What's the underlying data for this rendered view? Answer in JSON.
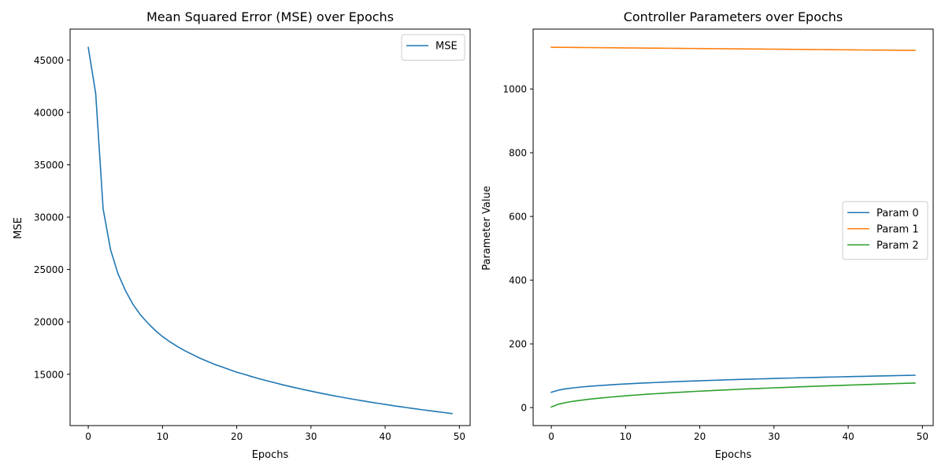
{
  "chart_data": [
    {
      "type": "line",
      "title": "Mean Squared Error (MSE) over Epochs",
      "xlabel": "Epochs",
      "ylabel": "MSE",
      "xlim": [
        -2.45,
        51.45
      ],
      "ylim": [
        10100,
        47950
      ],
      "xticks": [
        0,
        10,
        20,
        30,
        40,
        50
      ],
      "yticks": [
        15000,
        20000,
        25000,
        30000,
        35000,
        40000,
        45000
      ],
      "grid": false,
      "legend_position": "top-right",
      "series": [
        {
          "name": "MSE",
          "color": "#1f77b4",
          "x": [
            0,
            1,
            2,
            3,
            4,
            5,
            6,
            7,
            8,
            9,
            10,
            11,
            12,
            13,
            14,
            15,
            16,
            17,
            18,
            19,
            20,
            21,
            22,
            23,
            24,
            25,
            26,
            27,
            28,
            29,
            30,
            31,
            32,
            33,
            34,
            35,
            36,
            37,
            38,
            39,
            40,
            41,
            42,
            43,
            44,
            45,
            46,
            47,
            48,
            49
          ],
          "values": [
            46200,
            41800,
            30800,
            26900,
            24600,
            23000,
            21700,
            20700,
            19900,
            19200,
            18600,
            18100,
            17650,
            17250,
            16900,
            16550,
            16250,
            15950,
            15700,
            15450,
            15200,
            15000,
            14780,
            14580,
            14390,
            14210,
            14030,
            13860,
            13700,
            13540,
            13390,
            13240,
            13100,
            12960,
            12830,
            12700,
            12580,
            12460,
            12340,
            12230,
            12120,
            12010,
            11910,
            11810,
            11710,
            11610,
            11520,
            11430,
            11340,
            11250
          ]
        }
      ]
    },
    {
      "type": "line",
      "title": "Controller Parameters over Epochs",
      "xlabel": "Epochs",
      "ylabel": "Parameter Value",
      "xlim": [
        -2.45,
        51.45
      ],
      "ylim": [
        -56.5,
        1188
      ],
      "xticks": [
        0,
        10,
        20,
        30,
        40,
        50
      ],
      "yticks": [
        0,
        200,
        400,
        600,
        800,
        1000
      ],
      "grid": false,
      "legend_position": "center-right",
      "series": [
        {
          "name": "Param 0",
          "color": "#1f77b4",
          "x": [
            0,
            1,
            2,
            3,
            4,
            5,
            6,
            7,
            8,
            9,
            10,
            11,
            12,
            13,
            14,
            15,
            16,
            17,
            18,
            19,
            20,
            21,
            22,
            23,
            24,
            25,
            26,
            27,
            28,
            29,
            30,
            31,
            32,
            33,
            34,
            35,
            36,
            37,
            38,
            39,
            40,
            41,
            42,
            43,
            44,
            45,
            46,
            47,
            48,
            49
          ],
          "values": [
            48,
            55,
            59,
            62,
            64.5,
            66.5,
            68.3,
            70,
            71.5,
            72.9,
            74.2,
            75.4,
            76.6,
            77.7,
            78.7,
            79.7,
            80.7,
            81.6,
            82.5,
            83.4,
            84.2,
            85,
            85.8,
            86.6,
            87.3,
            88,
            88.7,
            89.4,
            90.1,
            90.7,
            91.4,
            92,
            92.6,
            93.2,
            93.8,
            94.4,
            94.9,
            95.5,
            96,
            96.6,
            97.1,
            97.6,
            98.1,
            98.6,
            99.1,
            99.6,
            100.1,
            100.6,
            101,
            101.5
          ]
        },
        {
          "name": "Param 1",
          "color": "#ff7f0e",
          "x": [
            0,
            1,
            2,
            3,
            4,
            5,
            6,
            7,
            8,
            9,
            10,
            11,
            12,
            13,
            14,
            15,
            16,
            17,
            18,
            19,
            20,
            21,
            22,
            23,
            24,
            25,
            26,
            27,
            28,
            29,
            30,
            31,
            32,
            33,
            34,
            35,
            36,
            37,
            38,
            39,
            40,
            41,
            42,
            43,
            44,
            45,
            46,
            47,
            48,
            49
          ],
          "values": [
            1131,
            1130.8,
            1130.6,
            1130.4,
            1130.2,
            1130,
            1129.8,
            1129.6,
            1129.4,
            1129.2,
            1129,
            1128.8,
            1128.6,
            1128.4,
            1128.2,
            1128,
            1127.8,
            1127.6,
            1127.4,
            1127.2,
            1127,
            1126.8,
            1126.6,
            1126.4,
            1126.2,
            1126,
            1125.8,
            1125.6,
            1125.4,
            1125.2,
            1125,
            1124.8,
            1124.6,
            1124.4,
            1124.2,
            1124,
            1123.8,
            1123.6,
            1123.4,
            1123.2,
            1123,
            1122.8,
            1122.6,
            1122.4,
            1122.2,
            1122,
            1121.8,
            1121.6,
            1121.4,
            1121.2
          ]
        },
        {
          "name": "Param 2",
          "color": "#2ca02c",
          "x": [
            0,
            1,
            2,
            3,
            4,
            5,
            6,
            7,
            8,
            9,
            10,
            11,
            12,
            13,
            14,
            15,
            16,
            17,
            18,
            19,
            20,
            21,
            22,
            23,
            24,
            25,
            26,
            27,
            28,
            29,
            30,
            31,
            32,
            33,
            34,
            35,
            36,
            37,
            38,
            39,
            40,
            41,
            42,
            43,
            44,
            45,
            46,
            47,
            48,
            49
          ],
          "values": [
            2,
            11,
            16,
            20,
            23,
            26,
            28.5,
            30.8,
            33,
            35,
            36.9,
            38.7,
            40.4,
            42,
            43.5,
            45,
            46.4,
            47.7,
            49,
            50.3,
            51.5,
            52.7,
            53.8,
            54.9,
            56,
            57.1,
            58.1,
            59.1,
            60.1,
            61.1,
            62,
            62.9,
            63.8,
            64.7,
            65.6,
            66.4,
            67.3,
            68.1,
            68.9,
            69.7,
            70.5,
            71.3,
            72,
            72.8,
            73.5,
            74.2,
            75,
            75.7,
            76.3,
            77
          ]
        }
      ]
    }
  ]
}
